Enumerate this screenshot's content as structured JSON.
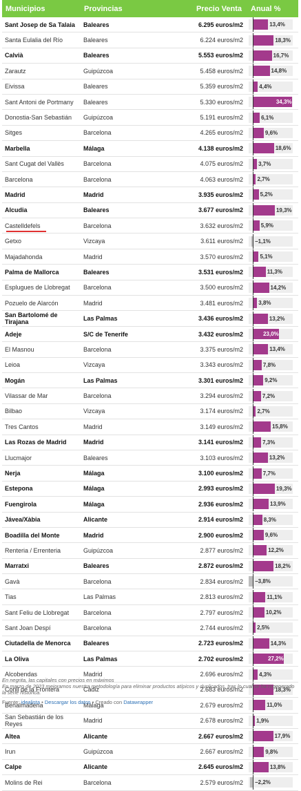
{
  "table": {
    "headers": {
      "municipio": "Municipios",
      "provincia": "Provincias",
      "precio": "Precio Venta",
      "anual": "Anual %"
    }
  },
  "colors": {
    "header_bg": "#7ac943",
    "bar_positive": "#a33a8c",
    "bar_negative": "#bdbdbd",
    "bar_track": "#eeeeee",
    "highlight_underline": "#e03030"
  },
  "notes": {
    "line1": "En negrita, las capitales con precios en máximos",
    "line2": "En marzo de 2023 mejoramos nuestra metodología para eliminar productos atípicos y duplicados, tras lo cual se ha regenerado la serie histórica."
  },
  "footer": {
    "source_prefix": "Fuente: ",
    "source_link": "idealista",
    "sep1": " • ",
    "download": "Descargar los datos",
    "sep2": " • Creado con ",
    "tool": "Datawrapper"
  },
  "chart_data": {
    "type": "table",
    "columns": [
      "Municipios",
      "Provincias",
      "Precio Venta",
      "Anual %"
    ],
    "rows": [
      {
        "municipio": "Sant Josep de Sa Talaia",
        "provincia": "Baleares",
        "precio": "6.295 euros/m2",
        "anual": 13.4,
        "anual_label": "13,4%",
        "bold": true
      },
      {
        "municipio": "Santa Eulalia del Río",
        "provincia": "Baleares",
        "precio": "6.224 euros/m2",
        "anual": 18.3,
        "anual_label": "18,3%",
        "bold": false
      },
      {
        "municipio": "Calvià",
        "provincia": "Baleares",
        "precio": "5.553 euros/m2",
        "anual": 16.7,
        "anual_label": "16,7%",
        "bold": true
      },
      {
        "municipio": "Zarautz",
        "provincia": "Guipúzcoa",
        "precio": "5.458 euros/m2",
        "anual": 14.8,
        "anual_label": "14,8%",
        "bold": false
      },
      {
        "municipio": "Eivissa",
        "provincia": "Baleares",
        "precio": "5.359 euros/m2",
        "anual": 4.4,
        "anual_label": "4,4%",
        "bold": false
      },
      {
        "municipio": "Sant Antoni de Portmany",
        "provincia": "Baleares",
        "precio": "5.330 euros/m2",
        "anual": 34.3,
        "anual_label": "34,3%",
        "bold": false
      },
      {
        "municipio": "Donostia-San Sebastián",
        "provincia": "Guipúzcoa",
        "precio": "5.191 euros/m2",
        "anual": 6.1,
        "anual_label": "6,1%",
        "bold": false
      },
      {
        "municipio": "Sitges",
        "provincia": "Barcelona",
        "precio": "4.265 euros/m2",
        "anual": 9.6,
        "anual_label": "9,6%",
        "bold": false
      },
      {
        "municipio": "Marbella",
        "provincia": "Málaga",
        "precio": "4.138 euros/m2",
        "anual": 18.6,
        "anual_label": "18,6%",
        "bold": true
      },
      {
        "municipio": "Sant Cugat del Vallès",
        "provincia": "Barcelona",
        "precio": "4.075 euros/m2",
        "anual": 3.7,
        "anual_label": "3,7%",
        "bold": false
      },
      {
        "municipio": "Barcelona",
        "provincia": "Barcelona",
        "precio": "4.063 euros/m2",
        "anual": 2.7,
        "anual_label": "2,7%",
        "bold": false
      },
      {
        "municipio": "Madrid",
        "provincia": "Madrid",
        "precio": "3.935 euros/m2",
        "anual": 5.2,
        "anual_label": "5,2%",
        "bold": true
      },
      {
        "municipio": "Alcudia",
        "provincia": "Baleares",
        "precio": "3.677 euros/m2",
        "anual": 19.3,
        "anual_label": "19,3%",
        "bold": true
      },
      {
        "municipio": "Castelldefels",
        "provincia": "Barcelona",
        "precio": "3.632 euros/m2",
        "anual": 5.9,
        "anual_label": "5,9%",
        "bold": false,
        "highlight": true
      },
      {
        "municipio": "Getxo",
        "provincia": "Vizcaya",
        "precio": "3.611 euros/m2",
        "anual": -1.1,
        "anual_label": "−1,1%",
        "bold": false
      },
      {
        "municipio": "Majadahonda",
        "provincia": "Madrid",
        "precio": "3.570 euros/m2",
        "anual": 5.1,
        "anual_label": "5,1%",
        "bold": false
      },
      {
        "municipio": "Palma de Mallorca",
        "provincia": "Baleares",
        "precio": "3.531 euros/m2",
        "anual": 11.3,
        "anual_label": "11,3%",
        "bold": true
      },
      {
        "municipio": "Esplugues de Llobregat",
        "provincia": "Barcelona",
        "precio": "3.500 euros/m2",
        "anual": 14.2,
        "anual_label": "14,2%",
        "bold": false
      },
      {
        "municipio": "Pozuelo de Alarcón",
        "provincia": "Madrid",
        "precio": "3.481 euros/m2",
        "anual": 3.8,
        "anual_label": "3,8%",
        "bold": false
      },
      {
        "municipio": "San Bartolomé de Tirajana",
        "provincia": "Las Palmas",
        "precio": "3.436 euros/m2",
        "anual": 13.2,
        "anual_label": "13,2%",
        "bold": true
      },
      {
        "municipio": "Adeje",
        "provincia": "S/C de Tenerife",
        "precio": "3.432 euros/m2",
        "anual": 23.0,
        "anual_label": "23,0%",
        "bold": true
      },
      {
        "municipio": "El Masnou",
        "provincia": "Barcelona",
        "precio": "3.375 euros/m2",
        "anual": 13.4,
        "anual_label": "13,4%",
        "bold": false
      },
      {
        "municipio": "Leioa",
        "provincia": "Vizcaya",
        "precio": "3.343 euros/m2",
        "anual": 7.8,
        "anual_label": "7,8%",
        "bold": false
      },
      {
        "municipio": "Mogán",
        "provincia": "Las Palmas",
        "precio": "3.301 euros/m2",
        "anual": 9.2,
        "anual_label": "9,2%",
        "bold": true
      },
      {
        "municipio": "Vilassar de Mar",
        "provincia": "Barcelona",
        "precio": "3.294 euros/m2",
        "anual": 7.2,
        "anual_label": "7,2%",
        "bold": false
      },
      {
        "municipio": "Bilbao",
        "provincia": "Vizcaya",
        "precio": "3.174 euros/m2",
        "anual": 2.7,
        "anual_label": "2,7%",
        "bold": false
      },
      {
        "municipio": "Tres Cantos",
        "provincia": "Madrid",
        "precio": "3.149 euros/m2",
        "anual": 15.8,
        "anual_label": "15,8%",
        "bold": false
      },
      {
        "municipio": "Las Rozas de Madrid",
        "provincia": "Madrid",
        "precio": "3.141 euros/m2",
        "anual": 7.3,
        "anual_label": "7,3%",
        "bold": true
      },
      {
        "municipio": "Llucmajor",
        "provincia": "Baleares",
        "precio": "3.103 euros/m2",
        "anual": 13.2,
        "anual_label": "13,2%",
        "bold": false
      },
      {
        "municipio": "Nerja",
        "provincia": "Málaga",
        "precio": "3.100 euros/m2",
        "anual": 7.7,
        "anual_label": "7,7%",
        "bold": true
      },
      {
        "municipio": "Estepona",
        "provincia": "Málaga",
        "precio": "2.993 euros/m2",
        "anual": 19.3,
        "anual_label": "19,3%",
        "bold": true
      },
      {
        "municipio": "Fuengirola",
        "provincia": "Málaga",
        "precio": "2.936 euros/m2",
        "anual": 13.9,
        "anual_label": "13,9%",
        "bold": true
      },
      {
        "municipio": "Jávea/Xàbia",
        "provincia": "Alicante",
        "precio": "2.914 euros/m2",
        "anual": 8.3,
        "anual_label": "8,3%",
        "bold": true
      },
      {
        "municipio": "Boadilla del Monte",
        "provincia": "Madrid",
        "precio": "2.900 euros/m2",
        "anual": 9.6,
        "anual_label": "9,6%",
        "bold": true
      },
      {
        "municipio": "Renteria / Errenteria",
        "provincia": "Guipúzcoa",
        "precio": "2.877 euros/m2",
        "anual": 12.2,
        "anual_label": "12,2%",
        "bold": false
      },
      {
        "municipio": "Marratxi",
        "provincia": "Baleares",
        "precio": "2.872 euros/m2",
        "anual": 18.2,
        "anual_label": "18,2%",
        "bold": true
      },
      {
        "municipio": "Gavà",
        "provincia": "Barcelona",
        "precio": "2.834 euros/m2",
        "anual": -3.8,
        "anual_label": "−3,8%",
        "bold": false
      },
      {
        "municipio": "Tias",
        "provincia": "Las Palmas",
        "precio": "2.813 euros/m2",
        "anual": 11.1,
        "anual_label": "11,1%",
        "bold": false
      },
      {
        "municipio": "Sant Feliu de Llobregat",
        "provincia": "Barcelona",
        "precio": "2.797 euros/m2",
        "anual": 10.2,
        "anual_label": "10,2%",
        "bold": false
      },
      {
        "municipio": "Sant Joan Despí",
        "provincia": "Barcelona",
        "precio": "2.744 euros/m2",
        "anual": 2.5,
        "anual_label": "2,5%",
        "bold": false
      },
      {
        "municipio": "Ciutadella de Menorca",
        "provincia": "Baleares",
        "precio": "2.723 euros/m2",
        "anual": 14.3,
        "anual_label": "14,3%",
        "bold": true
      },
      {
        "municipio": "La Oliva",
        "provincia": "Las Palmas",
        "precio": "2.702 euros/m2",
        "anual": 27.2,
        "anual_label": "27,2%",
        "bold": true
      },
      {
        "municipio": "Alcobendas",
        "provincia": "Madrid",
        "precio": "2.696 euros/m2",
        "anual": 4.3,
        "anual_label": "4,3%",
        "bold": false
      },
      {
        "municipio": "Conil de la Frontera",
        "provincia": "Cádiz",
        "precio": "2.683 euros/m2",
        "anual": 18.3,
        "anual_label": "18,3%",
        "bold": false
      },
      {
        "municipio": "Benalmádena",
        "provincia": "Málaga",
        "precio": "2.679 euros/m2",
        "anual": 11.0,
        "anual_label": "11,0%",
        "bold": false
      },
      {
        "municipio": "San Sebastián de los Reyes",
        "provincia": "Madrid",
        "precio": "2.678 euros/m2",
        "anual": 1.9,
        "anual_label": "1,9%",
        "bold": false
      },
      {
        "municipio": "Altea",
        "provincia": "Alicante",
        "precio": "2.667 euros/m2",
        "anual": 17.9,
        "anual_label": "17,9%",
        "bold": true
      },
      {
        "municipio": "Irun",
        "provincia": "Guipúzcoa",
        "precio": "2.667 euros/m2",
        "anual": 9.8,
        "anual_label": "9,8%",
        "bold": false
      },
      {
        "municipio": "Calpe",
        "provincia": "Alicante",
        "precio": "2.645 euros/m2",
        "anual": 13.8,
        "anual_label": "13,8%",
        "bold": true
      },
      {
        "municipio": "Molins de Rei",
        "provincia": "Barcelona",
        "precio": "2.579 euros/m2",
        "anual": -2.2,
        "anual_label": "−2,2%",
        "bold": false
      }
    ],
    "bar_domain": [
      -5,
      35
    ]
  }
}
